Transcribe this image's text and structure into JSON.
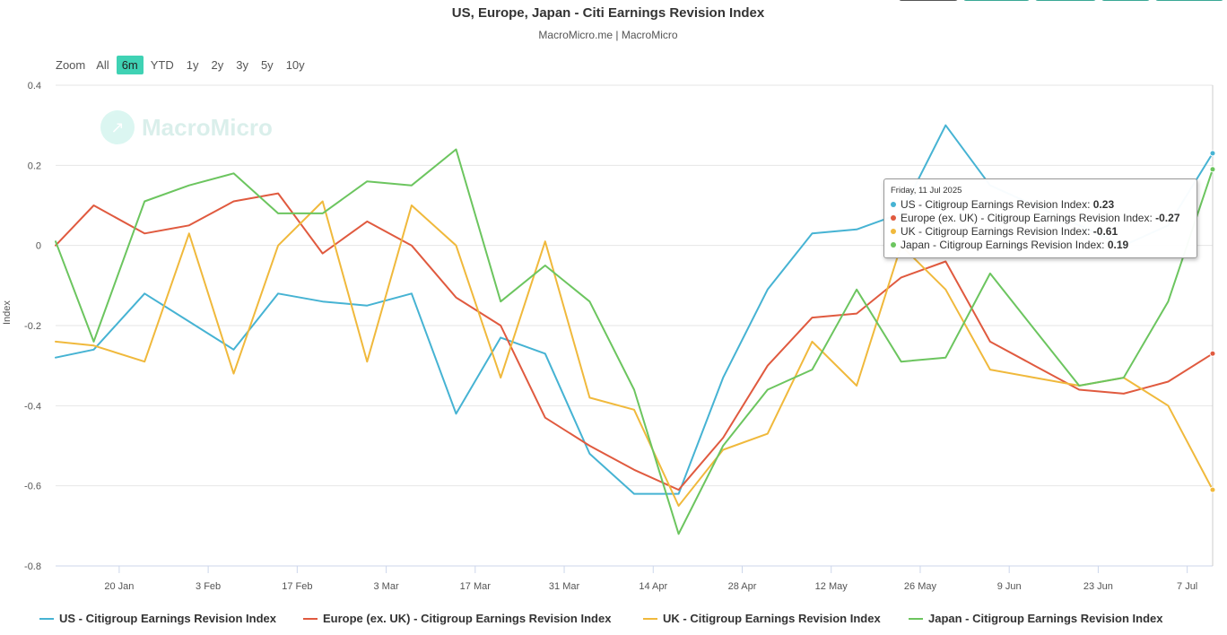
{
  "header": {
    "title": "US, Europe, Japan - Citi Earnings Revision Index",
    "subtitle": "MacroMicro.me | MacroMicro"
  },
  "zoom": {
    "label": "Zoom",
    "buttons": [
      "All",
      "6m",
      "YTD",
      "1y",
      "2y",
      "3y",
      "5y",
      "10y"
    ],
    "selected": "6m"
  },
  "watermark": {
    "text": "MacroMicro"
  },
  "tooltip": {
    "date": "Friday, 11 Jul 2025",
    "rows": [
      {
        "label": "US - Citigroup Earnings Revision Index:",
        "value": "0.23",
        "color": "#46b3d3"
      },
      {
        "label": "Europe (ex. UK) - Citigroup Earnings Revision Index:",
        "value": "-0.27",
        "color": "#e05a3f"
      },
      {
        "label": "UK - Citigroup Earnings Revision Index:",
        "value": "-0.61",
        "color": "#f0b93c"
      },
      {
        "label": "Japan - Citigroup Earnings Revision Index:",
        "value": "0.19",
        "color": "#6cc55f"
      }
    ]
  },
  "chart_data": {
    "type": "line",
    "ylabel": "Index",
    "ylim": [
      -0.8,
      0.4
    ],
    "yticks": [
      "0.4",
      "0.2",
      "0",
      "-0.2",
      "-0.4",
      "-0.6",
      "-0.8"
    ],
    "xticks": [
      {
        "date": "2025-01-20",
        "label": "20 Jan"
      },
      {
        "date": "2025-02-03",
        "label": "3 Feb"
      },
      {
        "date": "2025-02-17",
        "label": "17 Feb"
      },
      {
        "date": "2025-03-03",
        "label": "3 Mar"
      },
      {
        "date": "2025-03-17",
        "label": "17 Mar"
      },
      {
        "date": "2025-03-31",
        "label": "31 Mar"
      },
      {
        "date": "2025-04-14",
        "label": "14 Apr"
      },
      {
        "date": "2025-04-28",
        "label": "28 Apr"
      },
      {
        "date": "2025-05-12",
        "label": "12 May"
      },
      {
        "date": "2025-05-26",
        "label": "26 May"
      },
      {
        "date": "2025-06-09",
        "label": "9 Jun"
      },
      {
        "date": "2025-06-23",
        "label": "23 Jun"
      },
      {
        "date": "2025-07-07",
        "label": "7 Jul"
      }
    ],
    "x": [
      "2025-01-10",
      "2025-01-16",
      "2025-01-24",
      "2025-01-31",
      "2025-02-07",
      "2025-02-14",
      "2025-02-21",
      "2025-02-28",
      "2025-03-07",
      "2025-03-14",
      "2025-03-21",
      "2025-03-28",
      "2025-04-04",
      "2025-04-11",
      "2025-04-18",
      "2025-04-25",
      "2025-05-02",
      "2025-05-09",
      "2025-05-16",
      "2025-05-23",
      "2025-05-30",
      "2025-06-06",
      "2025-06-13",
      "2025-06-20",
      "2025-06-27",
      "2025-07-04",
      "2025-07-11"
    ],
    "series": [
      {
        "name": "US - Citigroup Earnings Revision Index",
        "color": "#46b3d3",
        "values": [
          -0.28,
          -0.26,
          -0.12,
          -0.19,
          -0.26,
          -0.12,
          -0.14,
          -0.15,
          -0.12,
          -0.42,
          -0.23,
          -0.27,
          -0.52,
          -0.62,
          -0.62,
          -0.33,
          -0.11,
          0.03,
          0.04,
          0.08,
          0.3,
          0.15,
          0.1,
          0.05,
          0.0,
          0.05,
          0.23
        ]
      },
      {
        "name": "Europe (ex. UK) - Citigroup Earnings Revision Index",
        "color": "#e05a3f",
        "values": [
          0.0,
          0.1,
          0.03,
          0.05,
          0.11,
          0.13,
          -0.02,
          0.06,
          0.0,
          -0.13,
          -0.2,
          -0.43,
          -0.5,
          -0.56,
          -0.61,
          -0.48,
          -0.3,
          -0.18,
          -0.17,
          -0.08,
          -0.04,
          -0.24,
          -0.3,
          -0.36,
          -0.37,
          -0.34,
          -0.27
        ]
      },
      {
        "name": "UK - Citigroup Earnings Revision Index",
        "color": "#f0b93c",
        "values": [
          -0.24,
          -0.25,
          -0.29,
          0.03,
          -0.32,
          0.0,
          0.11,
          -0.29,
          0.1,
          0.0,
          -0.33,
          0.01,
          -0.38,
          -0.41,
          -0.65,
          -0.51,
          -0.47,
          -0.24,
          -0.35,
          0.0,
          -0.11,
          -0.31,
          -0.33,
          -0.35,
          -0.33,
          -0.4,
          -0.61
        ]
      },
      {
        "name": "Japan - Citigroup Earnings Revision Index",
        "color": "#6cc55f",
        "values": [
          0.01,
          -0.24,
          0.11,
          0.15,
          0.18,
          0.08,
          0.08,
          0.16,
          0.15,
          0.24,
          -0.14,
          -0.05,
          -0.14,
          -0.36,
          -0.72,
          -0.5,
          -0.36,
          -0.31,
          -0.11,
          -0.29,
          -0.28,
          -0.07,
          -0.21,
          -0.35,
          -0.33,
          -0.14,
          0.19
        ]
      }
    ],
    "legend_position": "bottom",
    "grid": true
  }
}
